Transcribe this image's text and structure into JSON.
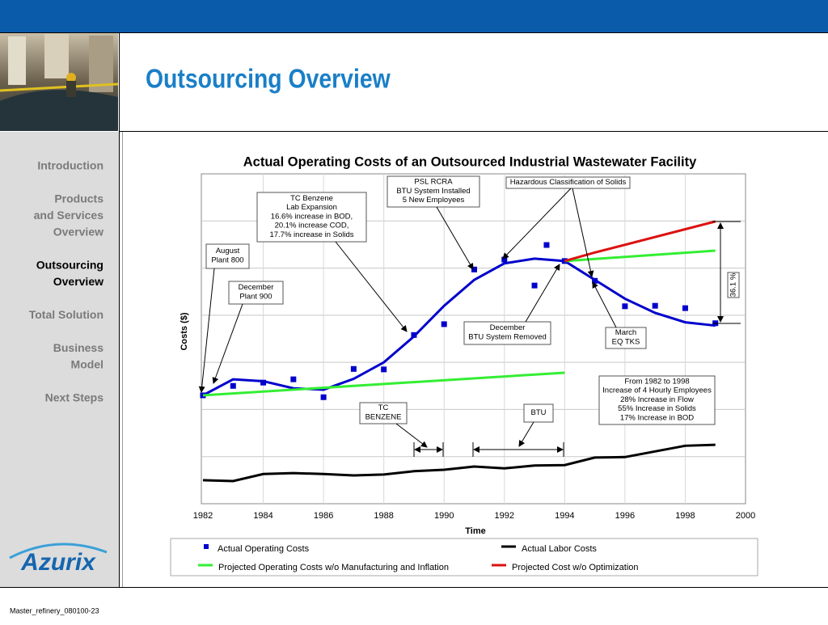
{
  "slide": {
    "title": "Outsourcing Overview",
    "nav": [
      {
        "lines": [
          "Introduction"
        ],
        "current": false
      },
      {
        "lines": [
          "Products",
          "and Services",
          "Overview"
        ],
        "current": false
      },
      {
        "lines": [
          "Outsourcing",
          "Overview"
        ],
        "current": true
      },
      {
        "lines": [
          "Total Solution"
        ],
        "current": false
      },
      {
        "lines": [
          "Business",
          "Model"
        ],
        "current": false
      },
      {
        "lines": [
          "Next Steps"
        ],
        "current": false
      }
    ],
    "logo": "Azurix",
    "footer": "Master_refinery_080100-23"
  },
  "chart_data": {
    "type": "scatter-line",
    "title": "Actual Operating Costs of an Outsourced Industrial Wastewater Facility",
    "xlabel": "Time",
    "ylabel": "Costs ($)",
    "xlim": [
      1982,
      2000
    ],
    "xticks": [
      1982,
      1984,
      1986,
      1988,
      1990,
      1992,
      1994,
      1996,
      1998,
      2000
    ],
    "ylim": [
      0,
      7
    ],
    "ygrid": [
      1,
      2,
      3,
      4,
      5,
      6
    ],
    "grid": true,
    "series": [
      {
        "name": "Actual Operating Costs",
        "kind": "markers",
        "color": "#0000cc",
        "x": [
          1982,
          1983,
          1984,
          1985,
          1986,
          1987,
          1988,
          1989,
          1990,
          1991,
          1992,
          1993,
          1993.4,
          1994,
          1995,
          1996,
          1997,
          1998,
          1999
        ],
        "values": [
          2.3,
          2.5,
          2.57,
          2.64,
          2.26,
          2.86,
          2.85,
          3.58,
          3.81,
          4.97,
          5.18,
          4.63,
          5.49,
          5.15,
          4.73,
          4.19,
          4.2,
          4.15,
          3.83
        ]
      },
      {
        "name": "Actual Labor Costs",
        "kind": "line",
        "color": "#000000",
        "x": [
          1982,
          1983,
          1984,
          1985,
          1986,
          1987,
          1988,
          1989,
          1990,
          1991,
          1992,
          1993,
          1994,
          1995,
          1996,
          1997,
          1998,
          1999
        ],
        "values": [
          0.5,
          0.48,
          0.63,
          0.65,
          0.63,
          0.6,
          0.62,
          0.69,
          0.72,
          0.79,
          0.75,
          0.81,
          0.82,
          0.98,
          0.99,
          1.11,
          1.23,
          1.25
        ]
      },
      {
        "name": "Projected Operating Costs w/o Manufacturing and Inflation",
        "kind": "line",
        "color": "#33ee33",
        "x": [
          1982,
          1994,
          1994,
          1994,
          1999
        ],
        "values": [
          2.3,
          2.78,
          null,
          5.15,
          5.37
        ]
      },
      {
        "name": "Projected Cost w/o Optimization",
        "kind": "line",
        "color": "#dd1111",
        "x": [
          1994,
          1995,
          1999
        ],
        "values": [
          5.15,
          5.33,
          5.99
        ]
      }
    ],
    "trend": {
      "color": "#0000cc",
      "x": [
        1982,
        1983,
        1984,
        1985,
        1986,
        1987,
        1988,
        1989,
        1990,
        1991,
        1992,
        1993,
        1994,
        1995,
        1996,
        1997,
        1998,
        1999
      ],
      "values": [
        2.3,
        2.64,
        2.6,
        2.45,
        2.42,
        2.65,
        3.0,
        3.55,
        4.2,
        4.75,
        5.1,
        5.2,
        5.15,
        4.75,
        4.35,
        4.05,
        3.85,
        3.78
      ]
    },
    "annotations": [
      {
        "lines": [
          "PSL RCRA",
          "BTU System Installed",
          "5 New Employees"
        ]
      },
      {
        "lines": [
          "Hazardous Classification of Solids"
        ]
      },
      {
        "lines": [
          "TC Benzene",
          "Lab Expansion",
          "16.6% increase in BOD,",
          "20.1% increase COD,",
          "17.7% increase in Solids"
        ]
      },
      {
        "lines": [
          "August",
          "Plant 800"
        ]
      },
      {
        "lines": [
          "December",
          "Plant 900"
        ]
      },
      {
        "lines": [
          "December",
          "BTU System Removed"
        ]
      },
      {
        "lines": [
          "March",
          "EQ TKS"
        ]
      },
      {
        "lines": [
          "From 1982 to 1998",
          "Increase of 4 Hourly Employees",
          "28% Increase in Flow",
          "55% Increase in Solids",
          "17% Increase in BOD"
        ]
      },
      {
        "lines": [
          "TC",
          "BENZENE"
        ]
      },
      {
        "lines": [
          "BTU"
        ]
      },
      {
        "lines": [
          "36.1 %"
        ]
      }
    ]
  }
}
